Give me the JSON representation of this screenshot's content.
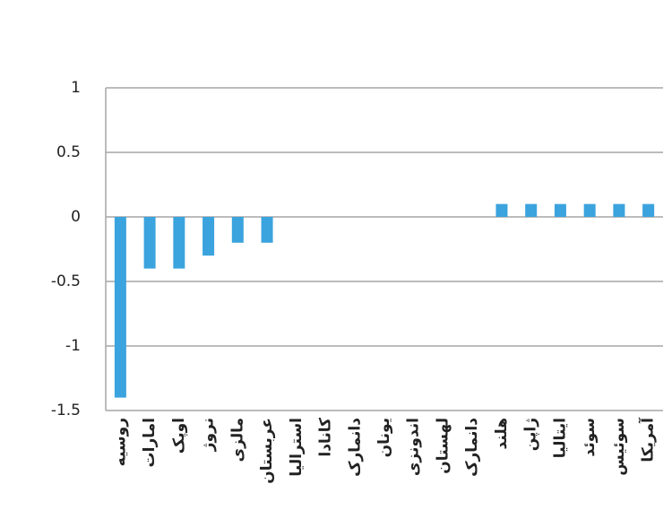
{
  "chart_data": {
    "type": "bar",
    "categories": [
      "روسیه",
      "امارات",
      "اوپک",
      "نروژ",
      "مالزی",
      "عربستان",
      "استرالیا",
      "کانادا",
      "دانمارک",
      "یونان",
      "اندونزی",
      "لهستان",
      "دانمارک",
      "هلند",
      "ژاپن",
      "ایتالیا",
      "سوئد",
      "سوئیس",
      "آمریکا"
    ],
    "values": [
      -1.4,
      -0.4,
      -0.4,
      -0.3,
      -0.2,
      -0.2,
      0,
      0,
      0,
      0,
      0,
      0,
      0,
      0.1,
      0.1,
      0.1,
      0.1,
      0.1,
      0.1
    ],
    "color": "#3ba3de",
    "ylim": [
      -1.5,
      1
    ],
    "yticks": [
      -1.5,
      -1,
      -0.5,
      0,
      0.5,
      1
    ],
    "grid": true
  }
}
